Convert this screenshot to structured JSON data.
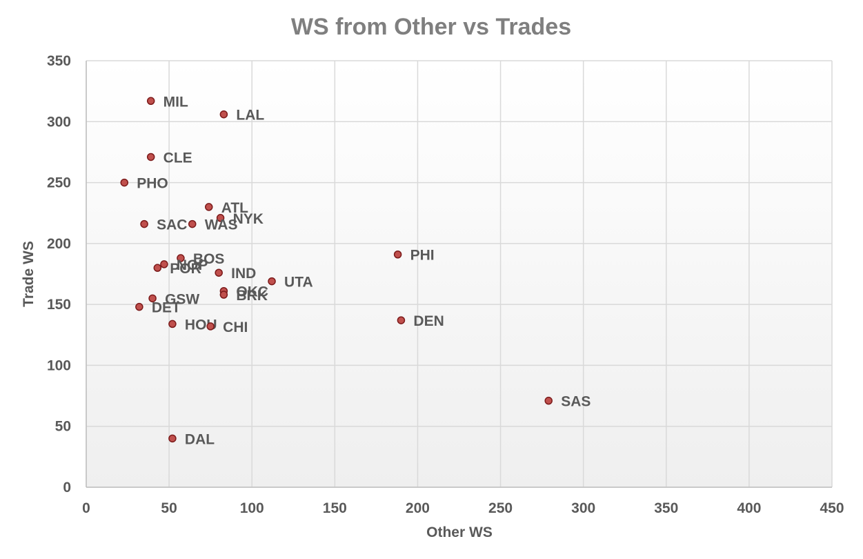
{
  "chart_data": {
    "type": "scatter",
    "title": "WS from Other vs Trades",
    "xlabel": "Other WS",
    "ylabel": "Trade WS",
    "xlim": [
      0,
      450
    ],
    "ylim": [
      0,
      350
    ],
    "x_ticks": [
      0,
      50,
      100,
      150,
      200,
      250,
      300,
      350,
      400,
      450
    ],
    "y_ticks": [
      0,
      50,
      100,
      150,
      200,
      250,
      300,
      350
    ],
    "grid": true,
    "legend": "none",
    "marker_fill": "#c0504d",
    "marker_stroke": "#7b1a1a",
    "points": [
      {
        "label": "MIL",
        "x": 39,
        "y": 317
      },
      {
        "label": "LAL",
        "x": 83,
        "y": 306
      },
      {
        "label": "CLE",
        "x": 39,
        "y": 271
      },
      {
        "label": "PHO",
        "x": 23,
        "y": 250
      },
      {
        "label": "ATL",
        "x": 74,
        "y": 230
      },
      {
        "label": "NYK",
        "x": 81,
        "y": 221
      },
      {
        "label": "SAC",
        "x": 35,
        "y": 216
      },
      {
        "label": "WAS",
        "x": 64,
        "y": 216
      },
      {
        "label": "PHI",
        "x": 188,
        "y": 191
      },
      {
        "label": "BOS",
        "x": 57,
        "y": 188
      },
      {
        "label": "NOP",
        "x": 47,
        "y": 183
      },
      {
        "label": "POR",
        "x": 43,
        "y": 180
      },
      {
        "label": "IND",
        "x": 80,
        "y": 176
      },
      {
        "label": "UTA",
        "x": 112,
        "y": 169
      },
      {
        "label": "OKC",
        "x": 83,
        "y": 161
      },
      {
        "label": "BRK",
        "x": 83,
        "y": 158
      },
      {
        "label": "GSW",
        "x": 40,
        "y": 155
      },
      {
        "label": "DET",
        "x": 32,
        "y": 148
      },
      {
        "label": "DEN",
        "x": 190,
        "y": 137
      },
      {
        "label": "HOU",
        "x": 52,
        "y": 134
      },
      {
        "label": "CHI",
        "x": 75,
        "y": 132
      },
      {
        "label": "SAS",
        "x": 279,
        "y": 71
      },
      {
        "label": "DAL",
        "x": 52,
        "y": 40
      }
    ]
  }
}
